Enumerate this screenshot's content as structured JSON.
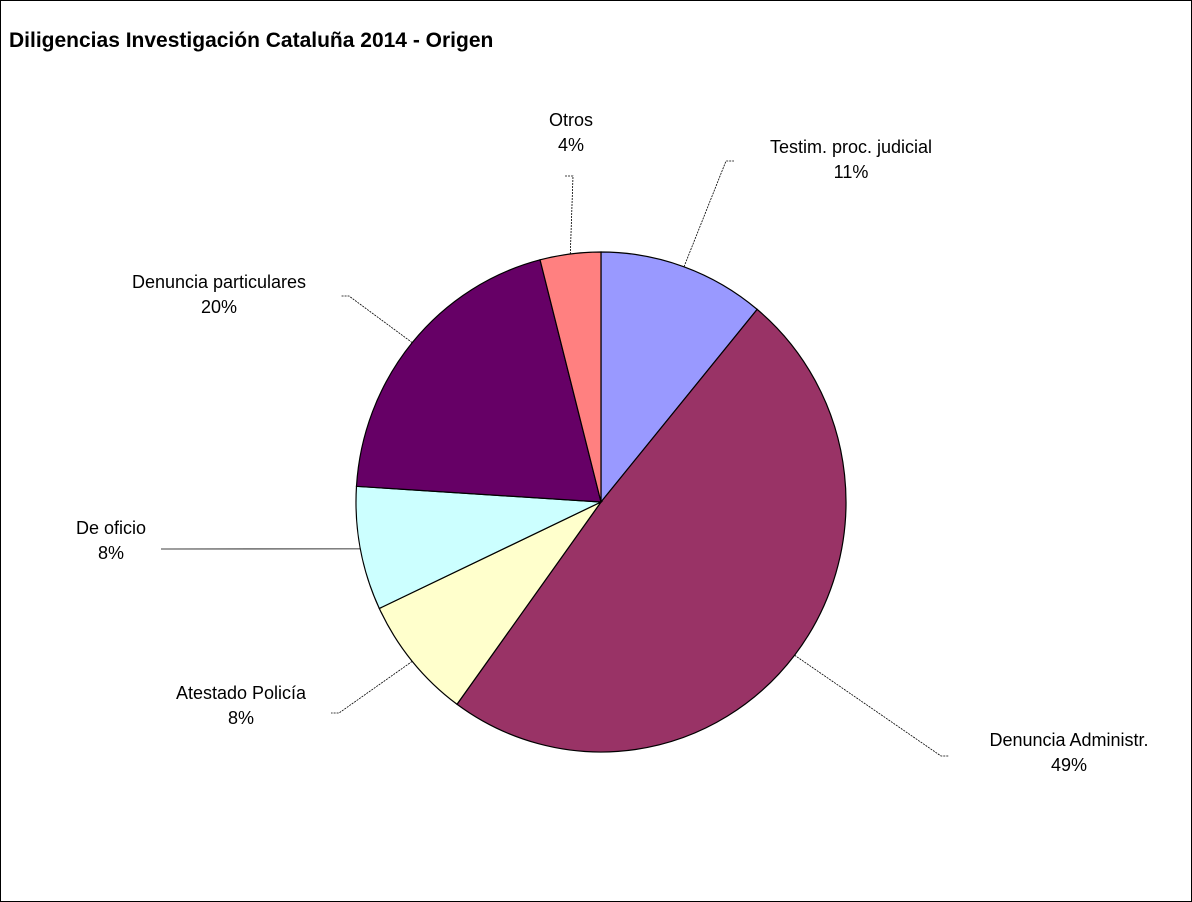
{
  "chart_data": {
    "type": "pie",
    "title": "Diligencias Investigación Cataluña 2014 - Origen",
    "start_angle_deg": 0,
    "direction": "clockwise",
    "slices": [
      {
        "name": "Testim. proc. judicial",
        "value": 11,
        "label": "11%",
        "color": "#9999ff"
      },
      {
        "name": "Denuncia Administr.",
        "value": 49,
        "label": "49%",
        "color": "#993366"
      },
      {
        "name": "Atestado Policía",
        "value": 8,
        "label": "8%",
        "color": "#ffffcc"
      },
      {
        "name": "De oficio",
        "value": 8,
        "label": "8%",
        "color": "#ccffff"
      },
      {
        "name": "Denuncia particulares",
        "value": 20,
        "label": "20%",
        "color": "#660066"
      },
      {
        "name": "Otros",
        "value": 4,
        "label": "4%",
        "color": "#ff8080"
      }
    ]
  }
}
